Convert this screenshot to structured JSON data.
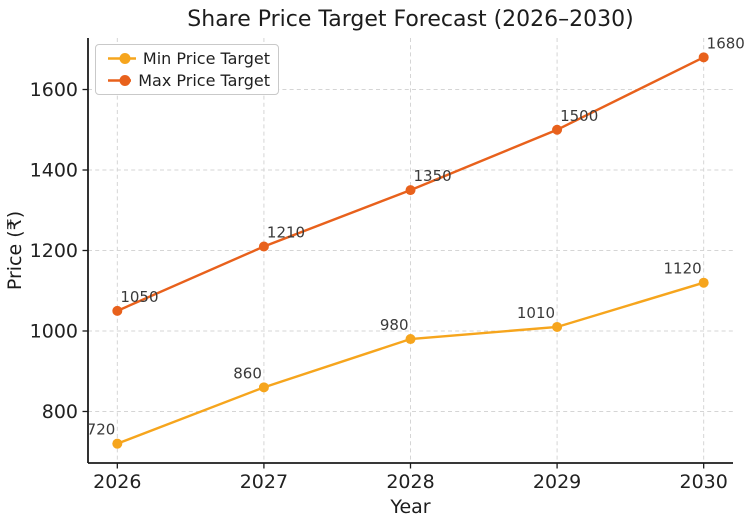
{
  "chart_data": {
    "type": "line",
    "title": "Share Price Target Forecast (2026–2030)",
    "xlabel": "Year",
    "ylabel": "Price (₹)",
    "x": [
      2026,
      2027,
      2028,
      2029,
      2030
    ],
    "x_tick_labels": [
      "2026",
      "2027",
      "2028",
      "2029",
      "2030"
    ],
    "yticks": [
      800,
      1000,
      1200,
      1400,
      1600
    ],
    "xlim": [
      2025.8,
      2030.2
    ],
    "ylim": [
      672,
      1728
    ],
    "grid": true,
    "grid_linestyle": "dashed",
    "legend_position": "upper left",
    "point_labels_shown": true,
    "series": [
      {
        "name": "Min Price Target",
        "color": "#F6A51D",
        "marker": "circle",
        "values": [
          720,
          860,
          980,
          1010,
          1120
        ],
        "point_label_side": "left"
      },
      {
        "name": "Max Price Target",
        "color": "#E8611C",
        "marker": "circle",
        "values": [
          1050,
          1210,
          1350,
          1500,
          1680
        ],
        "point_label_side": "right"
      }
    ]
  },
  "colors": {
    "grid": "#d5d5d5",
    "spine": "#1c1c1c",
    "tick_label": "#212121",
    "axis_label": "#1c1c1c",
    "point_label": "#3a3a3a",
    "legend_border": "#c9c9c9",
    "legend_bg": "#ffffff"
  }
}
